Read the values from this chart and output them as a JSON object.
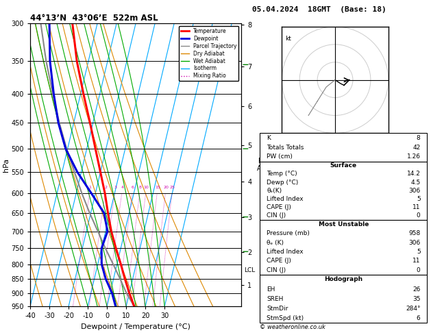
{
  "title_left": "44°13’N  43°06’E  522m ASL",
  "title_right": "05.04.2024  18GMT  (Base: 18)",
  "xlabel": "Dewpoint / Temperature (°C)",
  "ylabel_left": "hPa",
  "pressure_levels": [
    300,
    350,
    400,
    450,
    500,
    550,
    600,
    650,
    700,
    750,
    800,
    850,
    900,
    950
  ],
  "pressure_min": 300,
  "pressure_max": 950,
  "temp_min": -40,
  "temp_max": 35,
  "skew_factor": 35,
  "temp_profile": {
    "pressure": [
      950,
      900,
      850,
      800,
      750,
      700,
      650,
      600,
      550,
      500,
      450,
      400,
      350,
      300
    ],
    "temp": [
      14.2,
      10.0,
      6.0,
      2.0,
      -2.5,
      -7.0,
      -11.0,
      -15.0,
      -20.0,
      -25.5,
      -31.5,
      -38.5,
      -46.0,
      -53.0
    ]
  },
  "dewpoint_profile": {
    "pressure": [
      950,
      900,
      850,
      800,
      750,
      700,
      650,
      600,
      550,
      500,
      450,
      400,
      350,
      300
    ],
    "temp": [
      4.5,
      1.0,
      -4.0,
      -8.0,
      -10.0,
      -9.0,
      -13.0,
      -22.0,
      -32.0,
      -41.0,
      -48.0,
      -54.0,
      -60.0,
      -65.0
    ]
  },
  "parcel_profile": {
    "pressure": [
      950,
      900,
      850,
      800,
      750,
      700,
      650,
      600,
      550,
      500,
      450,
      400,
      350,
      300
    ],
    "temp": [
      14.2,
      8.5,
      3.5,
      -2.0,
      -8.0,
      -14.0,
      -20.5,
      -27.0,
      -33.5,
      -40.5,
      -47.5,
      -54.5,
      -62.0,
      -69.5
    ]
  },
  "isotherm_temps": [
    -40,
    -30,
    -20,
    -10,
    0,
    10,
    20,
    30
  ],
  "dry_adiabat_thetas": [
    -30,
    -20,
    -10,
    0,
    10,
    20,
    30,
    40,
    50,
    60
  ],
  "wet_adiabat_T0s": [
    -10,
    -5,
    0,
    5,
    10,
    15,
    20,
    25,
    30
  ],
  "mixing_ratios": [
    1,
    2,
    3,
    4,
    6,
    8,
    10,
    15,
    20,
    25
  ],
  "mixing_ratio_labels": [
    "1",
    "2",
    "3",
    "4",
    "6",
    "8",
    "10",
    "15",
    "20",
    "25"
  ],
  "lcl_pressure": 820,
  "km_ticks": {
    "pressure": [
      870,
      762,
      661,
      572,
      493,
      421,
      358,
      302
    ],
    "labels": [
      "1",
      "2",
      "3",
      "4",
      "5",
      "6",
      "7",
      "8"
    ]
  },
  "colors": {
    "temperature": "#ff0000",
    "dewpoint": "#0000dd",
    "parcel": "#888888",
    "dry_adiabat": "#dd8800",
    "wet_adiabat": "#00aa00",
    "isotherm": "#00aaff",
    "mixing_ratio": "#cc00aa",
    "background": "#ffffff",
    "grid": "#000000"
  },
  "legend_items": [
    [
      "Temperature",
      "#ff0000",
      "solid"
    ],
    [
      "Dewpoint",
      "#0000dd",
      "solid"
    ],
    [
      "Parcel Trajectory",
      "#888888",
      "solid"
    ],
    [
      "Dry Adiabat",
      "#dd8800",
      "solid"
    ],
    [
      "Wet Adiabat",
      "#00aa00",
      "solid"
    ],
    [
      "Isotherm",
      "#00aaff",
      "solid"
    ],
    [
      "Mixing Ratio",
      "#cc00aa",
      "dotted"
    ]
  ],
  "copyright": "© weatheronline.co.uk"
}
